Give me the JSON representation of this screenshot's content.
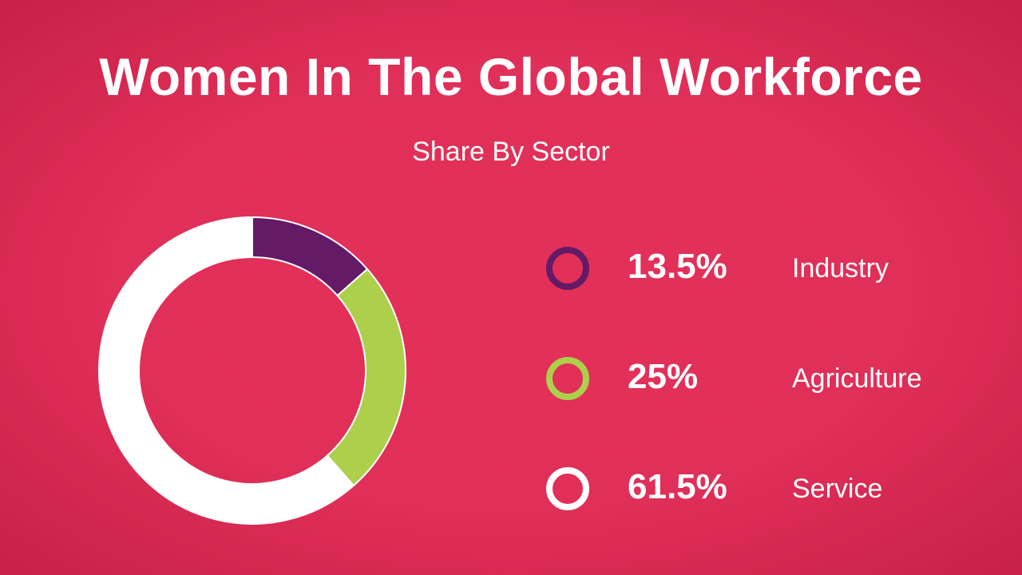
{
  "chart_data": {
    "type": "pie",
    "title": "Women In The Global Workforce",
    "subtitle": "Share By Sector",
    "categories": [
      "Industry",
      "Agriculture",
      "Service"
    ],
    "values": [
      13.5,
      25,
      61.5
    ],
    "value_labels": [
      "13.5%",
      "25%",
      "61.5%"
    ],
    "colors": [
      "#641a64",
      "#acd04b",
      "#ffffff"
    ],
    "hole": "donut",
    "legend": "right"
  }
}
